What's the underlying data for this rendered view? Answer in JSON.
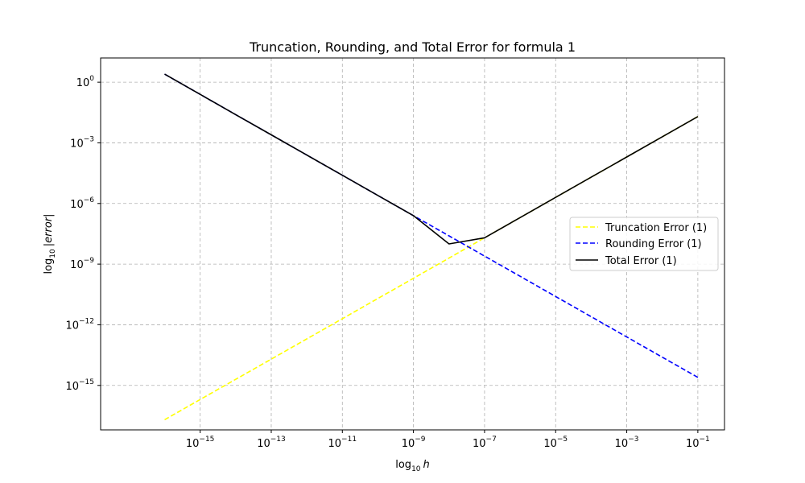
{
  "chart_data": {
    "type": "line",
    "title": "Truncation, Rounding, and Total Error for formula 1",
    "xlabel": {
      "base": "log",
      "sub": "10",
      "var": "h"
    },
    "ylabel": {
      "base": "log",
      "sub": "10",
      "expr": "|error|"
    },
    "xscale": "log",
    "yscale": "log",
    "xlim_exp": [
      -17.8,
      -0.25
    ],
    "ylim_exp": [
      -17.2,
      1.2
    ],
    "x_ticks": [
      {
        "base": "10",
        "exp": "−15",
        "value_exp": -15
      },
      {
        "base": "10",
        "exp": "−13",
        "value_exp": -13
      },
      {
        "base": "10",
        "exp": "−11",
        "value_exp": -11
      },
      {
        "base": "10",
        "exp": "−9",
        "value_exp": -9
      },
      {
        "base": "10",
        "exp": "−7",
        "value_exp": -7
      },
      {
        "base": "10",
        "exp": "−5",
        "value_exp": -5
      },
      {
        "base": "10",
        "exp": "−3",
        "value_exp": -3
      },
      {
        "base": "10",
        "exp": "−1",
        "value_exp": -1
      }
    ],
    "y_ticks": [
      {
        "base": "10",
        "exp": "0",
        "value_exp": 0
      },
      {
        "base": "10",
        "exp": "−3",
        "value_exp": -3
      },
      {
        "base": "10",
        "exp": "−6",
        "value_exp": -6
      },
      {
        "base": "10",
        "exp": "−9",
        "value_exp": -9
      },
      {
        "base": "10",
        "exp": "−12",
        "value_exp": -12
      },
      {
        "base": "10",
        "exp": "−15",
        "value_exp": -15
      }
    ],
    "grid": true,
    "legend_position": "center-right",
    "series": [
      {
        "name": "Truncation Error (1)",
        "color": "#ffff00",
        "style": "dashed",
        "x": [
          1e-16,
          1e-15,
          1e-14,
          1e-13,
          1e-12,
          1e-11,
          1e-10,
          1e-09,
          1e-08,
          1e-07,
          1e-06,
          1e-05,
          0.0001,
          0.001,
          0.01,
          0.1
        ],
        "y": [
          2e-17,
          2e-16,
          2e-15,
          2e-14,
          2e-13,
          2e-12,
          2e-11,
          2e-10,
          2e-09,
          2e-08,
          2e-07,
          2e-06,
          2e-05,
          0.0002,
          0.002,
          0.02
        ]
      },
      {
        "name": "Rounding Error (1)",
        "color": "#0000ff",
        "style": "dashed",
        "x": [
          1e-16,
          1e-15,
          1e-14,
          1e-13,
          1e-12,
          1e-11,
          1e-10,
          1e-09,
          1e-08,
          1e-07,
          1e-06,
          1e-05,
          0.0001,
          0.001,
          0.01,
          0.1
        ],
        "y": [
          2.5,
          0.25,
          0.025,
          0.0025,
          0.00025,
          2.5e-05,
          2.5e-06,
          2.5e-07,
          2.5e-08,
          2.5e-09,
          2.5e-10,
          2.5e-11,
          2.5e-12,
          2.5e-13,
          2.5e-14,
          2.5e-15
        ]
      },
      {
        "name": "Total Error (1)",
        "color": "#000000",
        "style": "solid",
        "x": [
          1e-16,
          1e-15,
          1e-14,
          1e-13,
          1e-12,
          1e-11,
          1e-10,
          1e-09,
          1e-08,
          1e-07,
          1e-06,
          1e-05,
          0.0001,
          0.001,
          0.01,
          0.1
        ],
        "y": [
          2.5,
          0.25,
          0.025,
          0.0025,
          0.00025,
          2.5e-05,
          2.5e-06,
          2.5e-07,
          1e-08,
          2e-08,
          2e-07,
          2e-06,
          2e-05,
          0.0002,
          0.002,
          0.02
        ]
      }
    ]
  }
}
